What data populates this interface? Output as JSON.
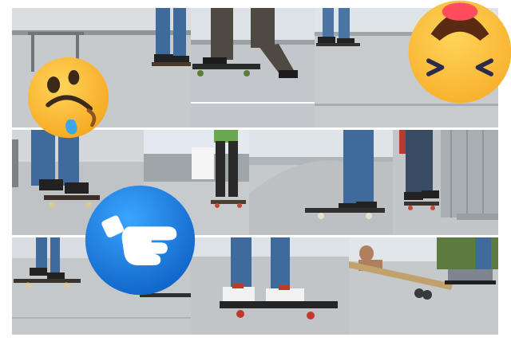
{
  "tiles": [
    {
      "label": "skater-feet-on-board-row1-a"
    },
    {
      "label": "skater-pushing-row1-b"
    },
    {
      "label": "skater-riding-row1-c"
    },
    {
      "label": "skater-legs-row2-a"
    },
    {
      "label": "skatepark-green-shirt-row2-b"
    },
    {
      "label": "skater-legs-row2-c"
    },
    {
      "label": "skater-near-wall-row2-d"
    },
    {
      "label": "skater-low-angle-row3-a"
    },
    {
      "label": "skater-sneakers-closeup-row3-b"
    },
    {
      "label": "skater-fallen-board-row3-c"
    }
  ],
  "emojis": [
    {
      "name": "drooling-upside-down-face-icon"
    },
    {
      "name": "laughing-squinting-face-icon"
    },
    {
      "name": "pointing-hand-icon"
    }
  ],
  "colors": {
    "ground": "#b9bcc0",
    "sky": "#dfe6ec",
    "denim": "#3f6a9c",
    "emoji_yellow": "#fbbf32",
    "hand_badge_blue": "#1a84e6"
  }
}
